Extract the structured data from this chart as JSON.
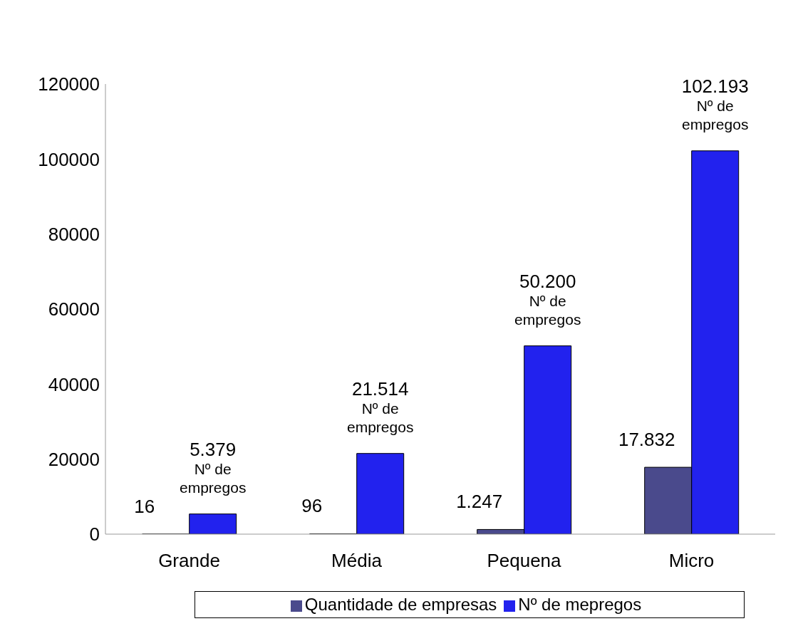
{
  "chart_data": {
    "type": "bar",
    "categories": [
      "Grande",
      "Média",
      "Pequena",
      "Micro"
    ],
    "series": [
      {
        "name": "Quantidade de empresas",
        "color": "#4a4a8c",
        "values": [
          16,
          96,
          1247,
          17832
        ],
        "value_labels": [
          "16",
          "96",
          "1.247",
          "17.832"
        ]
      },
      {
        "name": "Nº de mepregos",
        "color": "#2222ee",
        "values": [
          5379,
          21514,
          50200,
          102193
        ],
        "value_labels": [
          "5.379\nNº de\nempregos",
          "21.514\nNº de\nempregos",
          "50.200\nNº de\nempregos",
          "102.193\nNº de\nempregos"
        ]
      }
    ],
    "ylim": [
      0,
      120000
    ],
    "yticks": [
      0,
      20000,
      40000,
      60000,
      80000,
      100000,
      120000
    ],
    "grid": false,
    "legend": "bottom"
  }
}
